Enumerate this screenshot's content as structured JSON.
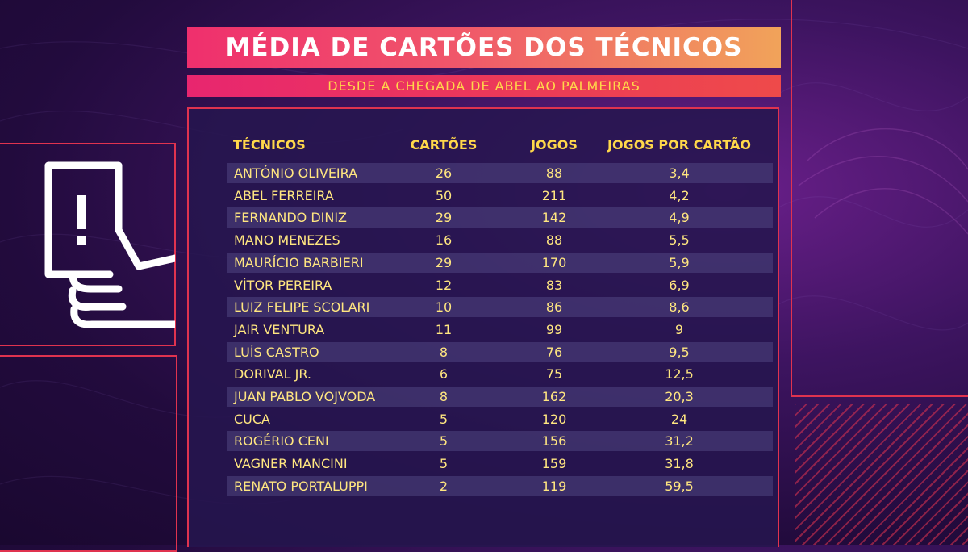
{
  "title": "MÉDIA DE CARTÕES DOS TÉCNICOS",
  "subtitle": "DESDE A CHEGADA DE ABEL AO PALMEIRAS",
  "icon": "hand-holding-card-icon",
  "colors": {
    "accent": "#e0334f",
    "text_yellow": "#ffd84a",
    "title_gradient_start": "#ef2f6d",
    "title_gradient_end": "#f1a35a"
  },
  "table": {
    "headers": [
      "TÉCNICOS",
      "CARTÕES",
      "JOGOS",
      "JOGOS POR CARTÃO"
    ],
    "rows": [
      [
        "ANTÓNIO OLIVEIRA",
        "26",
        "88",
        "3,4"
      ],
      [
        "ABEL FERREIRA",
        "50",
        "211",
        "4,2"
      ],
      [
        "FERNANDO DINIZ",
        "29",
        "142",
        "4,9"
      ],
      [
        "MANO MENEZES",
        "16",
        "88",
        "5,5"
      ],
      [
        "MAURÍCIO BARBIERI",
        "29",
        "170",
        "5,9"
      ],
      [
        "VÍTOR PEREIRA",
        "12",
        "83",
        "6,9"
      ],
      [
        "LUIZ FELIPE SCOLARI",
        "10",
        "86",
        "8,6"
      ],
      [
        "JAIR VENTURA",
        "11",
        "99",
        "9"
      ],
      [
        "LUÍS CASTRO",
        "8",
        "76",
        "9,5"
      ],
      [
        "DORIVAL JR.",
        "6",
        "75",
        "12,5"
      ],
      [
        "JUAN PABLO VOJVODA",
        "8",
        "162",
        "20,3"
      ],
      [
        "CUCA",
        "5",
        "120",
        "24"
      ],
      [
        "ROGÉRIO CENI",
        "5",
        "156",
        "31,2"
      ],
      [
        "VAGNER MANCINI",
        "5",
        "159",
        "31,8"
      ],
      [
        "RENATO PORTALUPPI",
        "2",
        "119",
        "59,5"
      ]
    ]
  }
}
